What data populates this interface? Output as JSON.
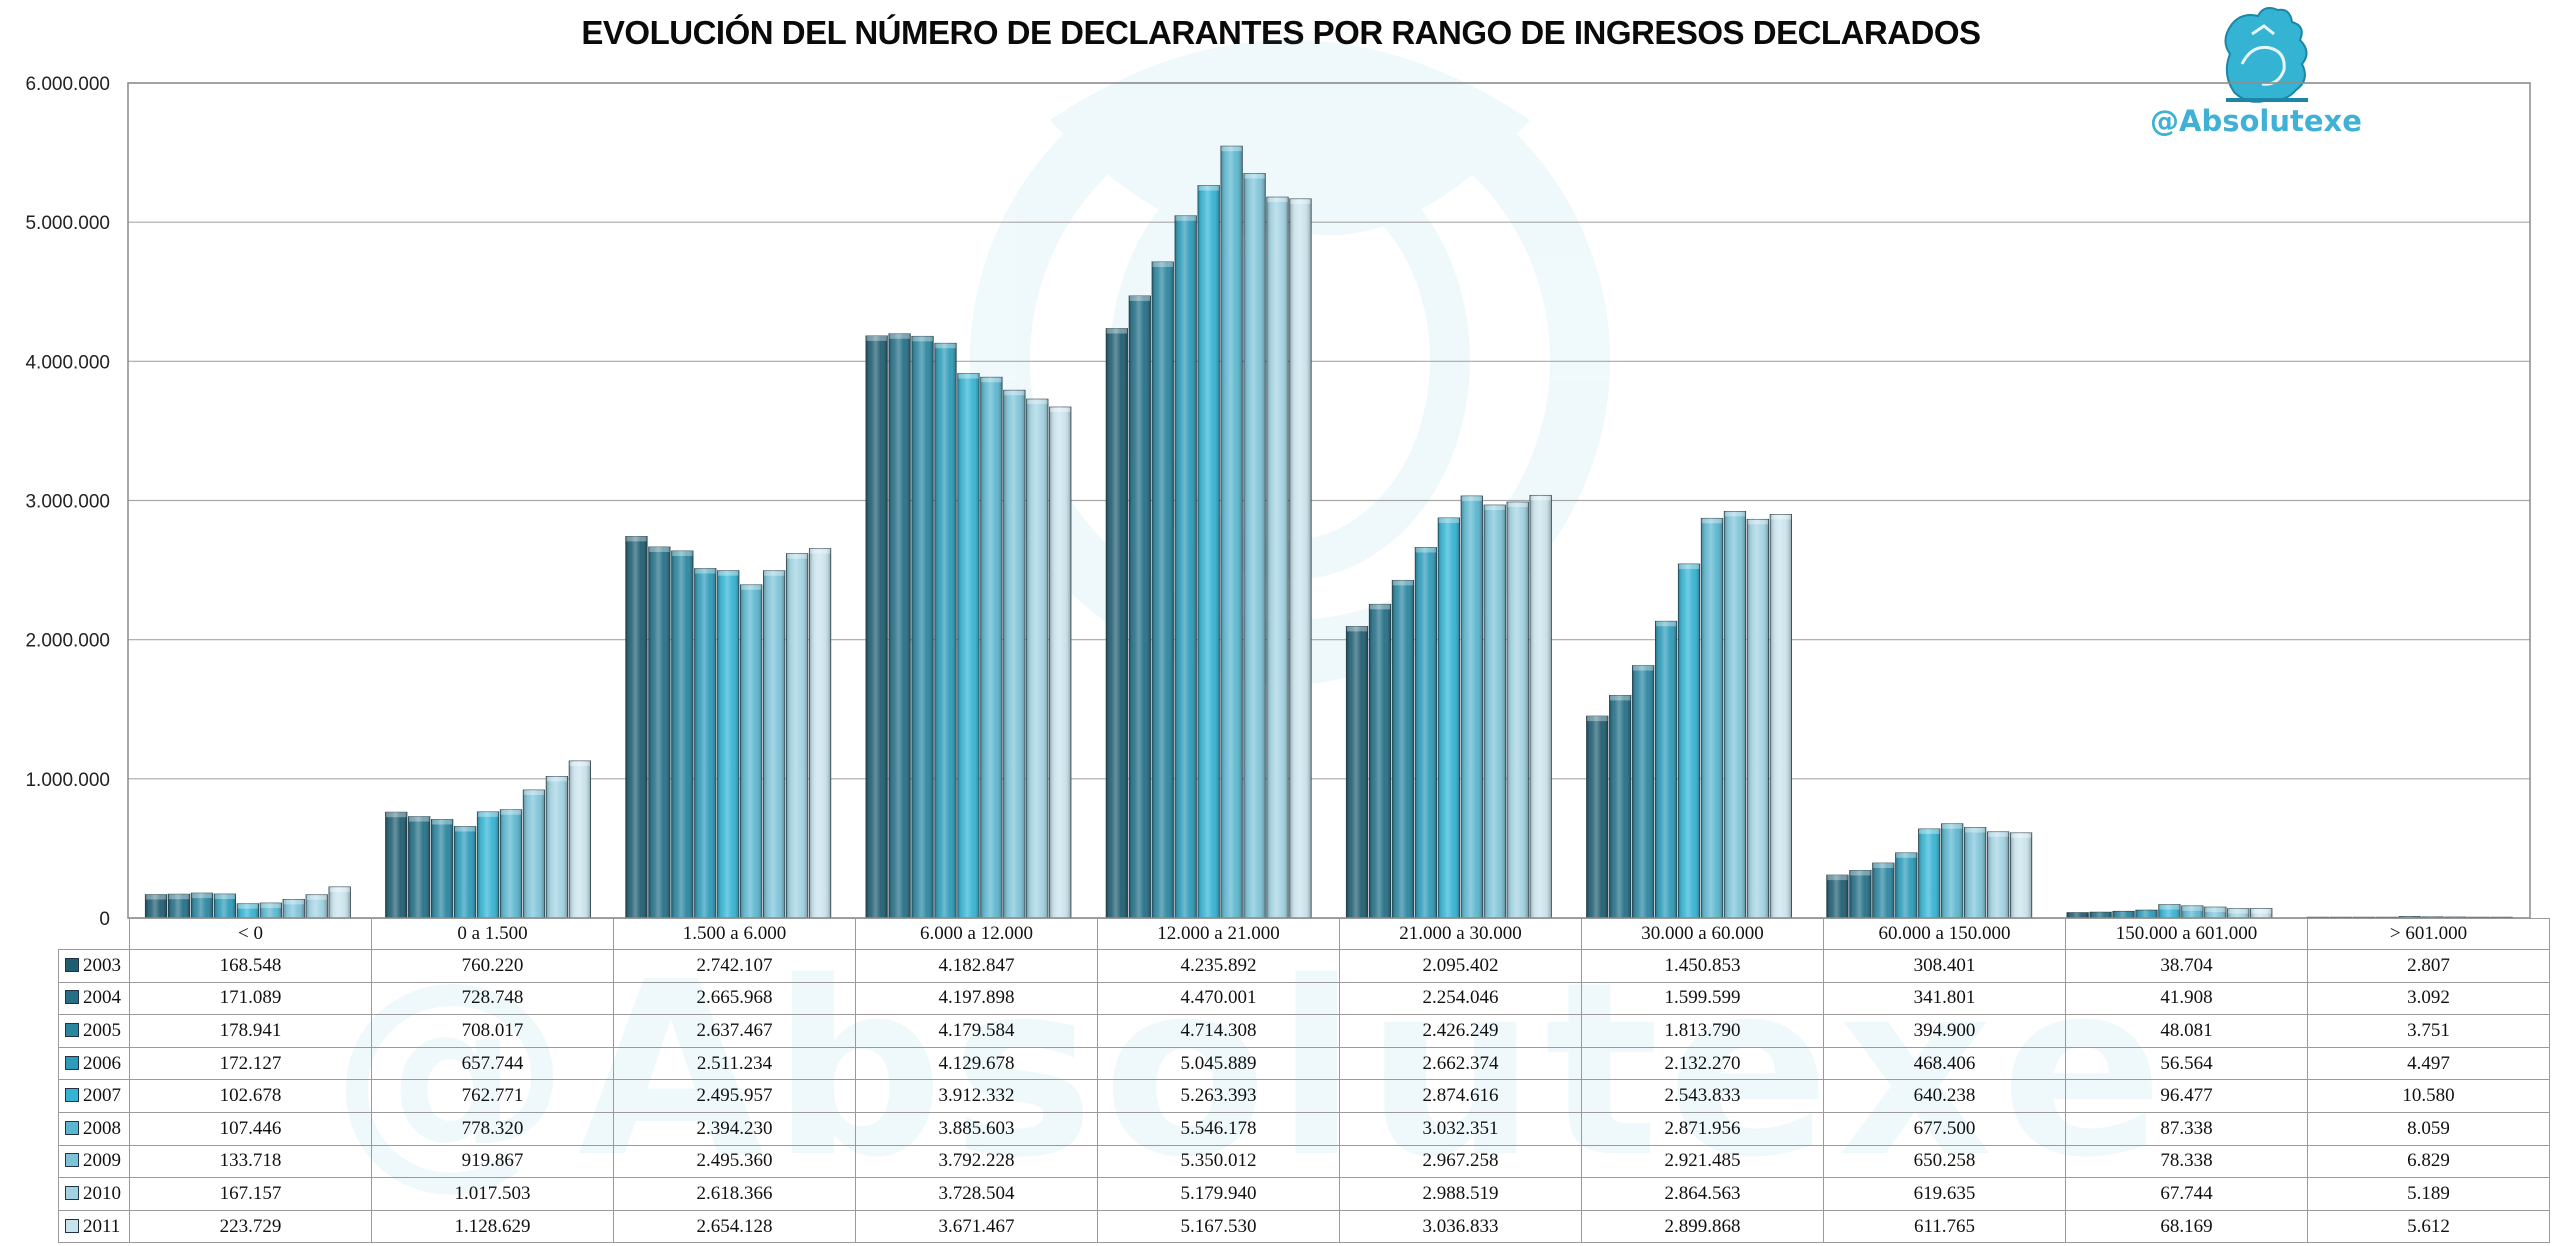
{
  "chart_data": {
    "type": "bar",
    "title": "EVOLUCIÓN DEL NÚMERO DE DECLARANTES POR RANGO DE INGRESOS DECLARADOS",
    "xlabel": "",
    "ylabel": "",
    "ylim": [
      0,
      6000000
    ],
    "yticks": [
      "0",
      "1.000.000",
      "2.000.000",
      "3.000.000",
      "4.000.000",
      "5.000.000",
      "6.000.000"
    ],
    "grid": true,
    "legend": "data-table-left",
    "categories": [
      "< 0",
      "0 a 1.500",
      "1.500 a 6.000",
      "6.000 a 12.000",
      "12.000 a 21.000",
      "21.000 a 30.000",
      "30.000 a 60.000",
      "60.000 a 150.000",
      "150.000 a 601.000",
      "> 601.000"
    ],
    "series": [
      {
        "name": "2003",
        "color": "#1f5d70",
        "values": [
          168548,
          760220,
          2742107,
          4182847,
          4235892,
          2095402,
          1450853,
          308401,
          38704,
          2807
        ],
        "labels": [
          "168.548",
          "760.220",
          "2.742.107",
          "4.182.847",
          "4.235.892",
          "2.095.402",
          "1.450.853",
          "308.401",
          "38.704",
          "2.807"
        ]
      },
      {
        "name": "2004",
        "color": "#246f86",
        "values": [
          171089,
          728748,
          2665968,
          4197898,
          4470001,
          2254046,
          1599599,
          341801,
          41908,
          3092
        ],
        "labels": [
          "171.089",
          "728.748",
          "2.665.968",
          "4.197.898",
          "4.470.001",
          "2.254.046",
          "1.599.599",
          "341.801",
          "41.908",
          "3.092"
        ]
      },
      {
        "name": "2005",
        "color": "#2a859f",
        "values": [
          178941,
          708017,
          2637467,
          4179584,
          4714308,
          2426249,
          1813790,
          394900,
          48081,
          3751
        ],
        "labels": [
          "178.941",
          "708.017",
          "2.637.467",
          "4.179.584",
          "4.714.308",
          "2.426.249",
          "1.813.790",
          "394.900",
          "48.081",
          "3.751"
        ]
      },
      {
        "name": "2006",
        "color": "#2d9bb9",
        "values": [
          172127,
          657744,
          2511234,
          4129678,
          5045889,
          2662374,
          2132270,
          468406,
          56564,
          4497
        ],
        "labels": [
          "172.127",
          "657.744",
          "2.511.234",
          "4.129.678",
          "5.045.889",
          "2.662.374",
          "2.132.270",
          "468.406",
          "56.564",
          "4.497"
        ]
      },
      {
        "name": "2007",
        "color": "#34b3d3",
        "values": [
          102678,
          762771,
          2495957,
          3912332,
          5263393,
          2874616,
          2543833,
          640238,
          96477,
          10580
        ],
        "labels": [
          "102.678",
          "762.771",
          "2.495.957",
          "3.912.332",
          "5.263.393",
          "2.874.616",
          "2.543.833",
          "640.238",
          "96.477",
          "10.580"
        ]
      },
      {
        "name": "2008",
        "color": "#5bb6cf",
        "values": [
          107446,
          778320,
          2394230,
          3885603,
          5546178,
          3032351,
          2871956,
          677500,
          87338,
          8059
        ],
        "labels": [
          "107.446",
          "778.320",
          "2.394.230",
          "3.885.603",
          "5.546.178",
          "3.032.351",
          "2.871.956",
          "677.500",
          "87.338",
          "8.059"
        ]
      },
      {
        "name": "2009",
        "color": "#7ec3d8",
        "values": [
          133718,
          919867,
          2495360,
          3792228,
          5350012,
          2967258,
          2921485,
          650258,
          78338,
          6829
        ],
        "labels": [
          "133.718",
          "919.867",
          "2.495.360",
          "3.792.228",
          "5.350.012",
          "2.967.258",
          "2.921.485",
          "650.258",
          "78.338",
          "6.829"
        ]
      },
      {
        "name": "2010",
        "color": "#a2d2e1",
        "values": [
          167157,
          1017503,
          2618366,
          3728504,
          5179940,
          2988519,
          2864563,
          619635,
          67744,
          5189
        ],
        "labels": [
          "167.157",
          "1.017.503",
          "2.618.366",
          "3.728.504",
          "5.179.940",
          "2.988.519",
          "2.864.563",
          "619.635",
          "67.744",
          "5.189"
        ]
      },
      {
        "name": "2011",
        "color": "#c9e3ec",
        "values": [
          223729,
          1128629,
          2654128,
          3671467,
          5167530,
          3036833,
          2899868,
          611765,
          68169,
          5612
        ],
        "labels": [
          "223.729",
          "1.128.629",
          "2.654.128",
          "3.671.467",
          "5.167.530",
          "3.036.833",
          "2.899.868",
          "611.765",
          "68.169",
          "5.612"
        ]
      }
    ]
  },
  "brand": {
    "handle": "@Absolutexe",
    "watermark": "@Absolutexe",
    "logo_icon": "griffin-icon",
    "color": "#3fb0d6"
  }
}
